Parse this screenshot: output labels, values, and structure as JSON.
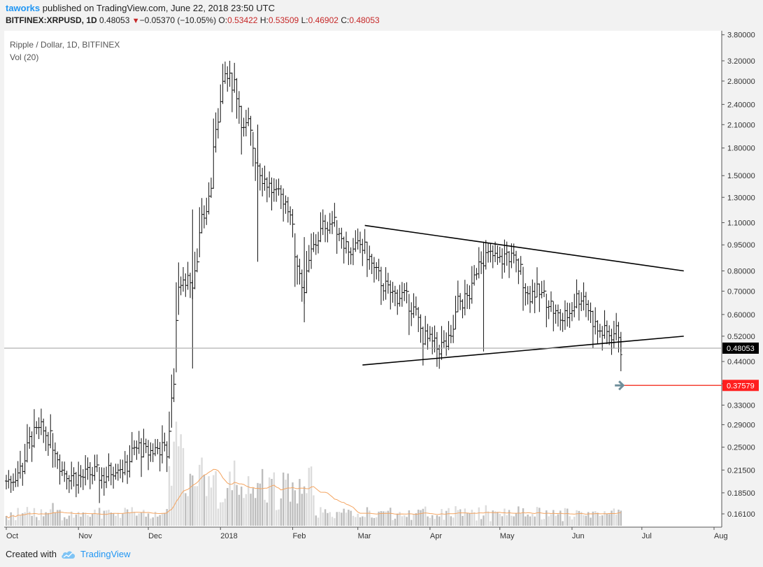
{
  "header": {
    "user": "taworks",
    "published": " published on TradingView.com, June 22, 2018 23:50 UTC"
  },
  "ticker": {
    "symbol": "BITFINEX:XRPUSD, 1D",
    "last": "0.48053",
    "change_arrow": "▼",
    "change": "−0.05370 (−10.05%)",
    "o_label": "O:",
    "o": "0.53422",
    "h_label": "H:",
    "h": "0.53509",
    "l_label": "L:",
    "l": "0.46902",
    "c_label": "C:",
    "c": "0.48053"
  },
  "footer": {
    "created_with": "Created with",
    "brand": "TradingView"
  },
  "colors": {
    "accent": "#2196f3",
    "down": "#c62828",
    "target_line": "#f44336",
    "arrow": "#6e8e9a",
    "volume_ma": "#f4a460"
  },
  "chart_data": {
    "type": "line",
    "title": "Ripple / Dollar, 1D, BITFINEX",
    "volume_label": "Vol (20)",
    "scale": "log",
    "y_ticks": [
      "3.80000",
      "3.20000",
      "2.80000",
      "2.40000",
      "2.10000",
      "1.80000",
      "1.50000",
      "1.30000",
      "1.10000",
      "0.95000",
      "0.80000",
      "0.70000",
      "0.60000",
      "0.52000",
      "0.44000",
      "0.38000",
      "0.33000",
      "0.29000",
      "0.25000",
      "0.21500",
      "0.18500",
      "0.16100"
    ],
    "x_labels": [
      "Oct",
      "Nov",
      "Dec",
      "2018",
      "Feb",
      "Mar",
      "Apr",
      "May",
      "Jun",
      "Jul",
      "Aug"
    ],
    "x_label_dates": [
      "2017-10-01",
      "2017-11-01",
      "2017-12-01",
      "2018-01-01",
      "2018-02-01",
      "2018-03-01",
      "2018-04-01",
      "2018-05-01",
      "2018-06-01",
      "2018-07-01",
      "2018-08-01"
    ],
    "ylim": [
      0.147,
      4.0
    ],
    "last_price": {
      "label": "0.48053",
      "value": 0.48053
    },
    "target": {
      "label": "0.37579",
      "value": 0.37579
    },
    "series": [
      {
        "type": "ohlc",
        "points": [
          [
            "2017-10-01",
            0.2
          ],
          [
            "2017-10-04",
            0.205
          ],
          [
            "2017-10-08",
            0.22
          ],
          [
            "2017-10-11",
            0.26
          ],
          [
            "2017-10-13",
            0.27
          ],
          [
            "2017-10-16",
            0.28
          ],
          [
            "2017-10-19",
            0.27
          ],
          [
            "2017-10-22",
            0.25
          ],
          [
            "2017-10-25",
            0.215
          ],
          [
            "2017-10-28",
            0.21
          ],
          [
            "2017-10-31",
            0.205
          ],
          [
            "2017-11-03",
            0.205
          ],
          [
            "2017-11-06",
            0.21
          ],
          [
            "2017-11-09",
            0.21
          ],
          [
            "2017-11-12",
            0.205
          ],
          [
            "2017-11-15",
            0.215
          ],
          [
            "2017-11-18",
            0.225
          ],
          [
            "2017-11-21",
            0.215
          ],
          [
            "2017-11-24",
            0.24
          ],
          [
            "2017-11-27",
            0.25
          ],
          [
            "2017-11-30",
            0.24
          ],
          [
            "2017-12-03",
            0.245
          ],
          [
            "2017-12-06",
            0.25
          ],
          [
            "2017-12-09",
            0.24
          ],
          [
            "2017-12-12",
            0.4
          ],
          [
            "2017-12-14",
            0.75
          ],
          [
            "2017-12-16",
            0.72
          ],
          [
            "2017-12-18",
            0.78
          ],
          [
            "2017-12-20",
            0.75
          ],
          [
            "2017-12-22",
            0.9
          ],
          [
            "2017-12-24",
            1.1
          ],
          [
            "2017-12-26",
            1.2
          ],
          [
            "2017-12-28",
            1.4
          ],
          [
            "2017-12-30",
            2.1
          ],
          [
            "2018-01-01",
            2.4
          ],
          [
            "2018-01-03",
            2.9
          ],
          [
            "2018-01-05",
            2.8
          ],
          [
            "2018-01-07",
            2.8
          ],
          [
            "2018-01-09",
            2.4
          ],
          [
            "2018-01-11",
            2.0
          ],
          [
            "2018-01-13",
            2.1
          ],
          [
            "2018-01-16",
            1.7
          ],
          [
            "2018-01-19",
            1.5
          ],
          [
            "2018-01-22",
            1.4
          ],
          [
            "2018-01-25",
            1.3
          ],
          [
            "2018-01-28",
            1.3
          ],
          [
            "2018-01-31",
            1.2
          ],
          [
            "2018-02-02",
            0.9
          ],
          [
            "2018-02-04",
            0.8
          ],
          [
            "2018-02-06",
            0.7
          ],
          [
            "2018-02-09",
            0.9
          ],
          [
            "2018-02-12",
            1.0
          ],
          [
            "2018-02-15",
            1.1
          ],
          [
            "2018-02-18",
            1.1
          ],
          [
            "2018-02-21",
            1.05
          ],
          [
            "2018-02-24",
            0.95
          ],
          [
            "2018-02-27",
            0.9
          ],
          [
            "2018-03-02",
            0.95
          ],
          [
            "2018-03-05",
            0.9
          ],
          [
            "2018-03-08",
            0.8
          ],
          [
            "2018-03-11",
            0.75
          ],
          [
            "2018-03-14",
            0.7
          ],
          [
            "2018-03-17",
            0.68
          ],
          [
            "2018-03-20",
            0.68
          ],
          [
            "2018-03-23",
            0.65
          ],
          [
            "2018-03-26",
            0.6
          ],
          [
            "2018-03-29",
            0.52
          ],
          [
            "2018-04-01",
            0.5
          ],
          [
            "2018-04-04",
            0.48
          ],
          [
            "2018-04-07",
            0.49
          ],
          [
            "2018-04-10",
            0.5
          ],
          [
            "2018-04-13",
            0.65
          ],
          [
            "2018-04-16",
            0.66
          ],
          [
            "2018-04-19",
            0.7
          ],
          [
            "2018-04-22",
            0.88
          ],
          [
            "2018-04-25",
            0.88
          ],
          [
            "2018-04-28",
            0.88
          ],
          [
            "2018-05-01",
            0.85
          ],
          [
            "2018-05-04",
            0.9
          ],
          [
            "2018-05-07",
            0.85
          ],
          [
            "2018-05-10",
            0.8
          ],
          [
            "2018-05-13",
            0.68
          ],
          [
            "2018-05-16",
            0.7
          ],
          [
            "2018-05-19",
            0.68
          ],
          [
            "2018-05-22",
            0.66
          ],
          [
            "2018-05-25",
            0.6
          ],
          [
            "2018-05-28",
            0.58
          ],
          [
            "2018-05-31",
            0.61
          ],
          [
            "2018-06-03",
            0.67
          ],
          [
            "2018-06-06",
            0.68
          ],
          [
            "2018-06-09",
            0.6
          ],
          [
            "2018-06-12",
            0.54
          ],
          [
            "2018-06-15",
            0.53
          ],
          [
            "2018-06-18",
            0.53
          ],
          [
            "2018-06-21",
            0.535
          ],
          [
            "2018-06-22",
            0.48
          ]
        ]
      }
    ],
    "annotations": [
      {
        "type": "trendline",
        "from": [
          "2018-03-04",
          1.08
        ],
        "to": [
          "2018-07-19",
          0.8
        ]
      },
      {
        "type": "trendline",
        "from": [
          "2018-03-03",
          0.43
        ],
        "to": [
          "2018-07-19",
          0.52
        ]
      },
      {
        "type": "horizontal_ray",
        "value": 0.37579,
        "from": "2018-06-23"
      }
    ]
  }
}
